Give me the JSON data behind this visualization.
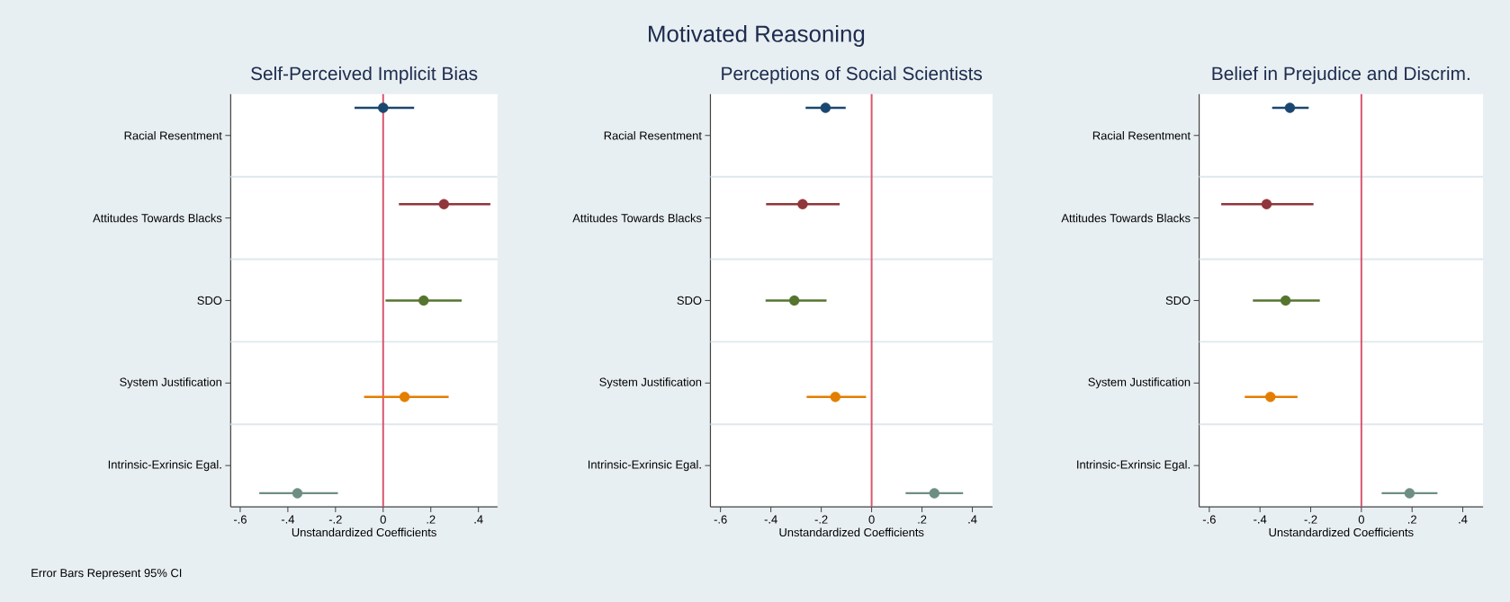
{
  "chart_data": [
    {
      "type": "scatter",
      "orientation": "horizontal",
      "title": "Self-Perceived Implicit Bias",
      "xlabel": "Unstandardized Coefficients",
      "categories": [
        "Racial Resentment",
        "Attitudes Towards Blacks",
        "SDO",
        "System Justification",
        "Intrinsic-Exrinsic Egal."
      ],
      "values": [
        0.0,
        0.255,
        0.17,
        0.09,
        -0.36
      ],
      "errors": [
        [
          -0.12,
          0.13
        ],
        [
          0.066,
          0.45
        ],
        [
          0.01,
          0.33
        ],
        [
          -0.08,
          0.275
        ],
        [
          -0.52,
          -0.19
        ]
      ],
      "colors": [
        "#1a476f",
        "#90353b",
        "#55752f",
        "#e37e00",
        "#6e8e84"
      ],
      "xlim": [
        -0.64,
        0.48
      ],
      "xticks": [
        {
          "value": -0.6,
          "label": "-.6"
        },
        {
          "value": -0.4,
          "label": "-.4"
        },
        {
          "value": -0.2,
          "label": "-.2"
        },
        0,
        {
          "value": 0.2,
          "label": ".2"
        },
        {
          "value": 0.4,
          "label": ".4"
        }
      ],
      "grid": "y",
      "marker": "circle",
      "ref_lines": [
        {
          "axis": "x",
          "value": 0,
          "color": "#d9576f"
        }
      ],
      "annotations": [
        "Motivated Reasoning",
        "Error Bars Represent 95% CI"
      ]
    },
    {
      "type": "scatter",
      "orientation": "horizontal",
      "title": "Perceptions of Social Scientists",
      "xlabel": "Unstandardized Coefficients",
      "categories": [
        "Racial Resentment",
        "Attitudes Towards Blacks",
        "SDO",
        "System Justification",
        "Intrinsic-Exrinsic Egal."
      ],
      "values": [
        -0.183,
        -0.274,
        -0.307,
        -0.144,
        0.249
      ],
      "errors": [
        [
          -0.262,
          -0.103
        ],
        [
          -0.419,
          -0.127
        ],
        [
          -0.421,
          -0.179
        ],
        [
          -0.258,
          -0.022
        ],
        [
          0.135,
          0.363
        ]
      ],
      "colors": [
        "#1a476f",
        "#90353b",
        "#55752f",
        "#e37e00",
        "#6e8e84"
      ],
      "xlim": [
        -0.64,
        0.48
      ],
      "xticks": [
        {
          "value": -0.6,
          "label": "-.6"
        },
        {
          "value": -0.4,
          "label": "-.4"
        },
        {
          "value": -0.2,
          "label": "-.2"
        },
        0,
        {
          "value": 0.2,
          "label": ".2"
        },
        {
          "value": 0.4,
          "label": ".4"
        }
      ],
      "grid": "y",
      "marker": "circle",
      "ref_lines": [
        {
          "axis": "x",
          "value": 0,
          "color": "#d9576f"
        }
      ]
    },
    {
      "type": "scatter",
      "orientation": "horizontal",
      "title": "Belief in Prejudice and Discrim.",
      "xlabel": "Unstandardized Coefficients",
      "categories": [
        "Racial Resentment",
        "Attitudes Towards Blacks",
        "SDO",
        "System Justification",
        "Intrinsic-Exrinsic Egal."
      ],
      "values": [
        -0.282,
        -0.374,
        -0.299,
        -0.359,
        0.19
      ],
      "errors": [
        [
          -0.352,
          -0.208
        ],
        [
          -0.553,
          -0.189
        ],
        [
          -0.428,
          -0.164
        ],
        [
          -0.46,
          -0.252
        ],
        [
          0.08,
          0.3
        ]
      ],
      "colors": [
        "#1a476f",
        "#90353b",
        "#55752f",
        "#e37e00",
        "#6e8e84"
      ],
      "xlim": [
        -0.64,
        0.48
      ],
      "xticks": [
        {
          "value": -0.6,
          "label": "-.6"
        },
        {
          "value": -0.4,
          "label": "-.4"
        },
        {
          "value": -0.2,
          "label": "-.2"
        },
        0,
        {
          "value": 0.2,
          "label": ".2"
        },
        {
          "value": 0.4,
          "label": ".4"
        }
      ],
      "grid": "y",
      "marker": "circle",
      "ref_lines": [
        {
          "axis": "x",
          "value": 0,
          "color": "#d9576f"
        }
      ]
    }
  ]
}
